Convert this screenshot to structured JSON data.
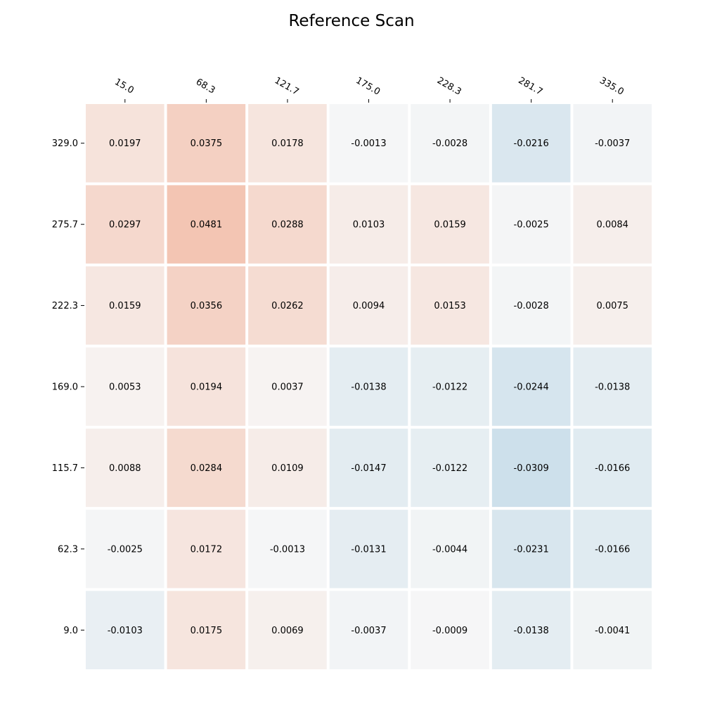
{
  "chart_data": {
    "type": "heatmap",
    "title": "Reference Scan",
    "xlabel": "",
    "ylabel": "",
    "x_tick_position": "top",
    "x_tick_rotation": "rotated",
    "grid": false,
    "legend": "none",
    "colormap": "diverging red-blue",
    "x": [
      "15.0",
      "68.3",
      "121.7",
      "175.0",
      "228.3",
      "281.7",
      "335.0"
    ],
    "y": [
      "329.0",
      "275.7",
      "222.3",
      "169.0",
      "115.7",
      "62.3",
      "9.0"
    ],
    "values": [
      [
        0.0197,
        0.0375,
        0.0178,
        -0.0013,
        -0.0028,
        -0.0216,
        -0.0037
      ],
      [
        0.0297,
        0.0481,
        0.0288,
        0.0103,
        0.0159,
        -0.0025,
        0.0084
      ],
      [
        0.0159,
        0.0356,
        0.0262,
        0.0094,
        0.0153,
        -0.0028,
        0.0075
      ],
      [
        0.0053,
        0.0194,
        0.0037,
        -0.0138,
        -0.0122,
        -0.0244,
        -0.0138
      ],
      [
        0.0088,
        0.0284,
        0.0109,
        -0.0147,
        -0.0122,
        -0.0309,
        -0.0166
      ],
      [
        -0.0025,
        0.0172,
        -0.0013,
        -0.0131,
        -0.0044,
        -0.0231,
        -0.0166
      ],
      [
        -0.0103,
        0.0175,
        0.0069,
        -0.0037,
        -0.0009,
        -0.0138,
        -0.0041
      ]
    ],
    "labels": [
      [
        "0.0197",
        "0.0375",
        "0.0178",
        "-0.0013",
        "-0.0028",
        "-0.0216",
        "-0.0037"
      ],
      [
        "0.0297",
        "0.0481",
        "0.0288",
        "0.0103",
        "0.0159",
        "-0.0025",
        "0.0084"
      ],
      [
        "0.0159",
        "0.0356",
        "0.0262",
        "0.0094",
        "0.0153",
        "-0.0028",
        "0.0075"
      ],
      [
        "0.0053",
        "0.0194",
        "0.0037",
        "-0.0138",
        "-0.0122",
        "-0.0244",
        "-0.0138"
      ],
      [
        "0.0088",
        "0.0284",
        "0.0109",
        "-0.0147",
        "-0.0122",
        "-0.0309",
        "-0.0166"
      ],
      [
        "-0.0025",
        "0.0172",
        "-0.0013",
        "-0.0131",
        "-0.0044",
        "-0.0231",
        "-0.0166"
      ],
      [
        "-0.0103",
        "0.0175",
        "0.0069",
        "-0.0037",
        "-0.0009",
        "-0.0138",
        "-0.0041"
      ]
    ],
    "color_scale": {
      "negative": "#67a9cf",
      "neutral": "#f7f7f7",
      "positive": "#ef8a62"
    }
  }
}
